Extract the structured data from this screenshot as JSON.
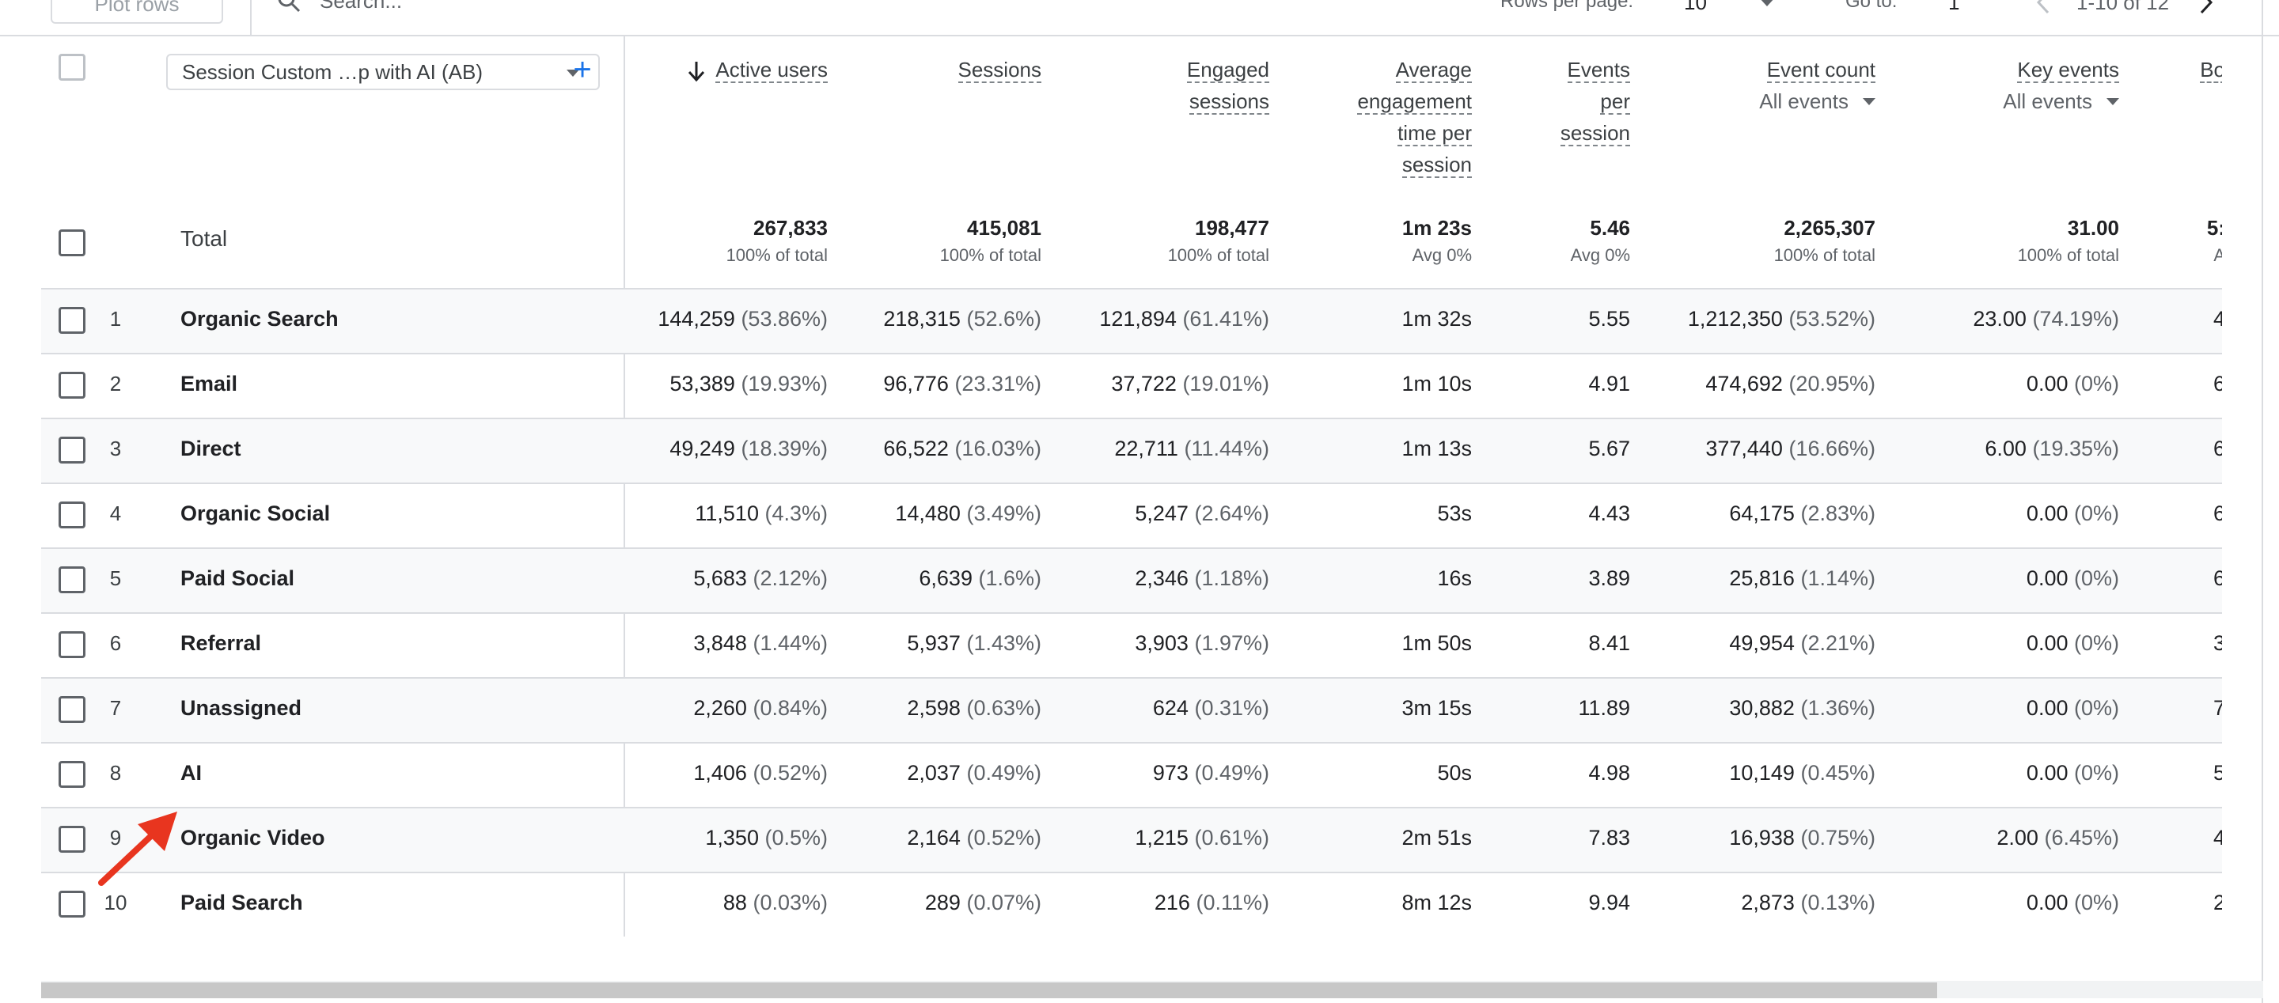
{
  "toolbar": {
    "plot_rows_label": "Plot rows",
    "search_placeholder": "Search...",
    "rows_per_page_label": "Rows per page:",
    "rows_per_page_value": "10",
    "goto_label": "Go to:",
    "goto_value": "1",
    "range_text": "1-10 of 12"
  },
  "dimension": {
    "label": "Session Custom …p with AI (AB)",
    "add_icon": "plus-icon"
  },
  "columns": [
    {
      "key": "active_users",
      "lines": [
        "Active users"
      ],
      "sorted": true
    },
    {
      "key": "sessions",
      "lines": [
        "Sessions"
      ]
    },
    {
      "key": "engaged_sessions",
      "lines": [
        "Engaged",
        "sessions"
      ]
    },
    {
      "key": "avg_engagement",
      "lines": [
        "Average",
        "engagement",
        "time per",
        "session"
      ]
    },
    {
      "key": "events_per_session",
      "lines": [
        "Events",
        "per",
        "session"
      ]
    },
    {
      "key": "event_count",
      "lines": [
        "Event count"
      ],
      "sub": "All events"
    },
    {
      "key": "key_events",
      "lines": [
        "Key events"
      ],
      "sub": "All events"
    },
    {
      "key": "bounce",
      "lines": [
        "Bo"
      ]
    }
  ],
  "totals": {
    "label": "Total",
    "values": [
      {
        "v": "267,833",
        "p": "100% of total"
      },
      {
        "v": "415,081",
        "p": "100% of total"
      },
      {
        "v": "198,477",
        "p": "100% of total"
      },
      {
        "v": "1m 23s",
        "p": "Avg 0%"
      },
      {
        "v": "5.46",
        "p": "Avg 0%"
      },
      {
        "v": "2,265,307",
        "p": "100% of total"
      },
      {
        "v": "31.00",
        "p": "100% of total"
      },
      {
        "v": "5:",
        "p": "A"
      }
    ]
  },
  "rows": [
    {
      "i": "1",
      "name": "Organic Search",
      "c": [
        [
          "144,259",
          "(53.86%)"
        ],
        [
          "218,315",
          "(52.6%)"
        ],
        [
          "121,894",
          "(61.41%)"
        ],
        [
          "1m 32s",
          ""
        ],
        [
          "5.55",
          ""
        ],
        [
          "1,212,350",
          "(53.52%)"
        ],
        [
          "23.00",
          "(74.19%)"
        ],
        [
          "4",
          ""
        ]
      ]
    },
    {
      "i": "2",
      "name": "Email",
      "c": [
        [
          "53,389",
          "(19.93%)"
        ],
        [
          "96,776",
          "(23.31%)"
        ],
        [
          "37,722",
          "(19.01%)"
        ],
        [
          "1m 10s",
          ""
        ],
        [
          "4.91",
          ""
        ],
        [
          "474,692",
          "(20.95%)"
        ],
        [
          "0.00",
          "(0%)"
        ],
        [
          "6",
          ""
        ]
      ]
    },
    {
      "i": "3",
      "name": "Direct",
      "c": [
        [
          "49,249",
          "(18.39%)"
        ],
        [
          "66,522",
          "(16.03%)"
        ],
        [
          "22,711",
          "(11.44%)"
        ],
        [
          "1m 13s",
          ""
        ],
        [
          "5.67",
          ""
        ],
        [
          "377,440",
          "(16.66%)"
        ],
        [
          "6.00",
          "(19.35%)"
        ],
        [
          "6",
          ""
        ]
      ]
    },
    {
      "i": "4",
      "name": "Organic Social",
      "c": [
        [
          "11,510",
          "(4.3%)"
        ],
        [
          "14,480",
          "(3.49%)"
        ],
        [
          "5,247",
          "(2.64%)"
        ],
        [
          "53s",
          ""
        ],
        [
          "4.43",
          ""
        ],
        [
          "64,175",
          "(2.83%)"
        ],
        [
          "0.00",
          "(0%)"
        ],
        [
          "6",
          ""
        ]
      ]
    },
    {
      "i": "5",
      "name": "Paid Social",
      "c": [
        [
          "5,683",
          "(2.12%)"
        ],
        [
          "6,639",
          "(1.6%)"
        ],
        [
          "2,346",
          "(1.18%)"
        ],
        [
          "16s",
          ""
        ],
        [
          "3.89",
          ""
        ],
        [
          "25,816",
          "(1.14%)"
        ],
        [
          "0.00",
          "(0%)"
        ],
        [
          "6",
          ""
        ]
      ]
    },
    {
      "i": "6",
      "name": "Referral",
      "c": [
        [
          "3,848",
          "(1.44%)"
        ],
        [
          "5,937",
          "(1.43%)"
        ],
        [
          "3,903",
          "(1.97%)"
        ],
        [
          "1m 50s",
          ""
        ],
        [
          "8.41",
          ""
        ],
        [
          "49,954",
          "(2.21%)"
        ],
        [
          "0.00",
          "(0%)"
        ],
        [
          "3",
          ""
        ]
      ]
    },
    {
      "i": "7",
      "name": "Unassigned",
      "c": [
        [
          "2,260",
          "(0.84%)"
        ],
        [
          "2,598",
          "(0.63%)"
        ],
        [
          "624",
          "(0.31%)"
        ],
        [
          "3m 15s",
          ""
        ],
        [
          "11.89",
          ""
        ],
        [
          "30,882",
          "(1.36%)"
        ],
        [
          "0.00",
          "(0%)"
        ],
        [
          "7",
          ""
        ]
      ]
    },
    {
      "i": "8",
      "name": "AI",
      "c": [
        [
          "1,406",
          "(0.52%)"
        ],
        [
          "2,037",
          "(0.49%)"
        ],
        [
          "973",
          "(0.49%)"
        ],
        [
          "50s",
          ""
        ],
        [
          "4.98",
          ""
        ],
        [
          "10,149",
          "(0.45%)"
        ],
        [
          "0.00",
          "(0%)"
        ],
        [
          "5",
          ""
        ]
      ]
    },
    {
      "i": "9",
      "name": "Organic Video",
      "c": [
        [
          "1,350",
          "(0.5%)"
        ],
        [
          "2,164",
          "(0.52%)"
        ],
        [
          "1,215",
          "(0.61%)"
        ],
        [
          "2m 51s",
          ""
        ],
        [
          "7.83",
          ""
        ],
        [
          "16,938",
          "(0.75%)"
        ],
        [
          "2.00",
          "(6.45%)"
        ],
        [
          "4",
          ""
        ]
      ]
    },
    {
      "i": "10",
      "name": "Paid Search",
      "c": [
        [
          "88",
          "(0.03%)"
        ],
        [
          "289",
          "(0.07%)"
        ],
        [
          "216",
          "(0.11%)"
        ],
        [
          "8m 12s",
          ""
        ],
        [
          "9.94",
          ""
        ],
        [
          "2,873",
          "(0.13%)"
        ],
        [
          "0.00",
          "(0%)"
        ],
        [
          "2",
          ""
        ]
      ]
    }
  ],
  "colors": {
    "accent": "#1a73e8",
    "arrow": "#e8351f",
    "row_alt": "#f8f9fa",
    "border": "#dadce0"
  }
}
